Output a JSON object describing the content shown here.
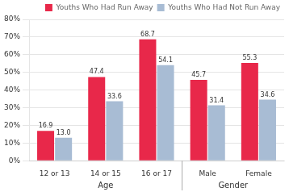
{
  "chart_data": {
    "type": "bar",
    "categories": [
      "12 or 13",
      "14 or 15",
      "16 or 17",
      "Male",
      "Female"
    ],
    "series": [
      {
        "name": "Youths Who Had Run Away",
        "color": "#e8284a",
        "values": [
          16.9,
          47.4,
          68.7,
          45.7,
          55.3
        ]
      },
      {
        "name": "Youths Who Had Not Run Away",
        "color": "#a8bcd4",
        "values": [
          13.0,
          33.6,
          54.1,
          31.4,
          34.6
        ]
      }
    ],
    "value_labels": [
      [
        "16.9",
        "47.4",
        "68.7",
        "45.7",
        "55.3"
      ],
      [
        "13.0",
        "33.6",
        "54.1",
        "31.4",
        "34.6"
      ]
    ],
    "annotations": [
      {
        "text": "Age",
        "categories": [
          "12 or 13",
          "14 or 15",
          "16 or 17"
        ]
      },
      {
        "text": "Gender",
        "categories": [
          "Male",
          "Female"
        ]
      }
    ],
    "ylim": [
      0,
      80
    ],
    "yticks": [
      {
        "value": 0,
        "label": "0%"
      },
      {
        "value": 10,
        "label": "10%"
      },
      {
        "value": 20,
        "label": "20%"
      },
      {
        "value": 30,
        "label": "30%"
      },
      {
        "value": 40,
        "label": "40%"
      },
      {
        "value": 50,
        "label": "50%"
      },
      {
        "value": 60,
        "label": "60%"
      },
      {
        "value": 70,
        "label": "70%"
      },
      {
        "value": 80,
        "label": "80%"
      }
    ],
    "grid": true,
    "legend": "upper right",
    "data_labels": true
  }
}
